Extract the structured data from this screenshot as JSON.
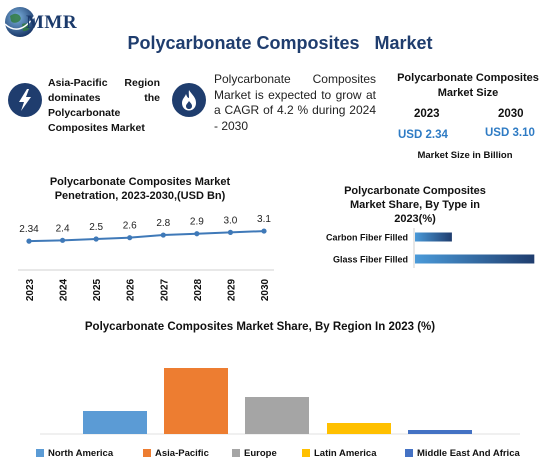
{
  "brand": {
    "logo_text": "MMR"
  },
  "title": "Polycarbonate Composites   Market",
  "highlights": [
    {
      "icon": "lightning-icon",
      "text": "Asia-Pacific Region dominates the Polycarbonate Composites Market"
    },
    {
      "icon": "flame-icon",
      "text": "Polycarbonate Composites Market is expected to grow at a CAGR of 4.2 % during 2024 - 2030"
    }
  ],
  "market_size": {
    "title": "Polycarbonate Composites Market Size",
    "year_start": "2023",
    "year_end": "2030",
    "value_start": "USD 2.34",
    "value_end": "USD 3.10",
    "caption": "Market Size in Billion"
  },
  "colors": {
    "navy": "#1f3d6e",
    "line": "#3f79b8",
    "north_america": "#5b9bd5",
    "asia_pacific": "#ed7d31",
    "europe": "#a5a5a5",
    "latin_america": "#ffc000",
    "middle_east_africa": "#4472c4"
  },
  "chart_data": [
    {
      "type": "line",
      "title": "Polycarbonate Composites Market Penetration, 2023-2030,(USD Bn)",
      "x": [
        "2023",
        "2024",
        "2025",
        "2026",
        "2027",
        "2028",
        "2029",
        "2030"
      ],
      "values": [
        2.34,
        2.4,
        2.5,
        2.6,
        2.8,
        2.9,
        3.0,
        3.1
      ],
      "data_labels": [
        "2.34",
        "2.4",
        "2.5",
        "2.6",
        "2.8",
        "2.9",
        "3.0",
        "3.1"
      ],
      "ylim": [
        0,
        3.5
      ],
      "grid": false
    },
    {
      "type": "bar",
      "orientation": "horizontal",
      "title": "Polycarbonate Composites Market Share, By Type in 2023(%)",
      "categories": [
        "Carbon Fiber Filled",
        "Glass Fiber Filled"
      ],
      "values": [
        30,
        97
      ],
      "xlim": [
        0,
        100
      ],
      "grid": false
    },
    {
      "type": "bar",
      "title": "Polycarbonate Composites Market Share, By Region In 2023 (%)",
      "categories": [
        "North America",
        "Asia-Pacific",
        "Europe",
        "Latin America",
        "Middle East And Africa"
      ],
      "values": [
        23,
        66,
        37,
        11,
        4
      ],
      "ylim": [
        0,
        70
      ],
      "legend": "bottom",
      "grid": false
    }
  ]
}
